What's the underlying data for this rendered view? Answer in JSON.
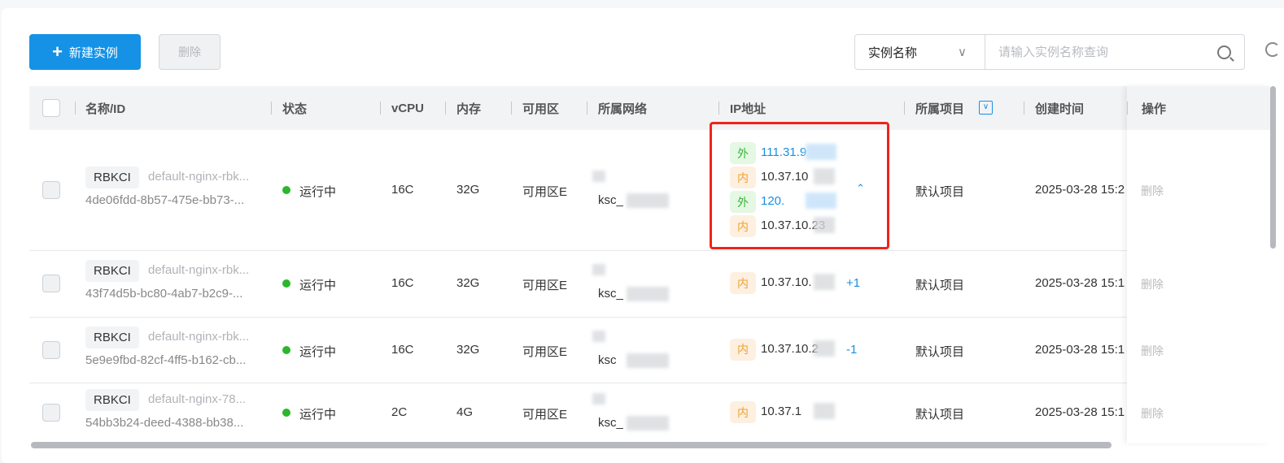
{
  "toolbar": {
    "create_label": "新建实例",
    "delete_label": "删除",
    "filter_select": "实例名称",
    "search_placeholder": "请输入实例名称查询"
  },
  "columns": [
    "名称/ID",
    "状态",
    "vCPU",
    "内存",
    "可用区",
    "所属网络",
    "IP地址",
    "所属项目",
    "创建时间",
    "操作"
  ],
  "rows": [
    {
      "tag": "RBKCI",
      "name": "default-nginx-rbk...",
      "id": "4de06fdd-8b57-475e-bb73-...",
      "status": "运行中",
      "vcpu": "16C",
      "mem": "32G",
      "zone": "可用区E",
      "network": "ksc_",
      "ips": [
        {
          "type": "外",
          "ip": "111.31.9"
        },
        {
          "type": "内",
          "ip": "10.37.10"
        },
        {
          "type": "外",
          "ip": "120."
        },
        {
          "type": "内",
          "ip": "10.37.10.23"
        }
      ],
      "project": "默认项目",
      "created": "2025-03-28 15:2",
      "action": "删除"
    },
    {
      "tag": "RBKCI",
      "name": "default-nginx-rbk...",
      "id": "43f74d5b-bc80-4ab7-b2c9-...",
      "status": "运行中",
      "vcpu": "16C",
      "mem": "32G",
      "zone": "可用区E",
      "network": "ksc_",
      "ips": [
        {
          "type": "内",
          "ip": "10.37.10."
        }
      ],
      "more": "+1",
      "project": "默认项目",
      "created": "2025-03-28 15:1",
      "action": "删除"
    },
    {
      "tag": "RBKCI",
      "name": "default-nginx-rbk...",
      "id": "5e9e9fbd-82cf-4ff5-b162-cb...",
      "status": "运行中",
      "vcpu": "16C",
      "mem": "32G",
      "zone": "可用区E",
      "network": "ksc",
      "ips": [
        {
          "type": "内",
          "ip": "10.37.10.2"
        }
      ],
      "more": "-1",
      "project": "默认项目",
      "created": "2025-03-28 15:1",
      "action": "删除"
    },
    {
      "tag": "RBKCI",
      "name": "default-nginx-78...",
      "id": "54bb3b24-deed-4388-bb38...",
      "status": "运行中",
      "vcpu": "2C",
      "mem": "4G",
      "zone": "可用区E",
      "network": "ksc_",
      "ips": [
        {
          "type": "内",
          "ip": "10.37.1"
        }
      ],
      "project": "默认项目",
      "created": "2025-03-28 15:1",
      "action": "删除"
    }
  ],
  "colors": {
    "primary": "#1592e6",
    "running": "#2cb62c",
    "highlight": "#f0231c"
  }
}
